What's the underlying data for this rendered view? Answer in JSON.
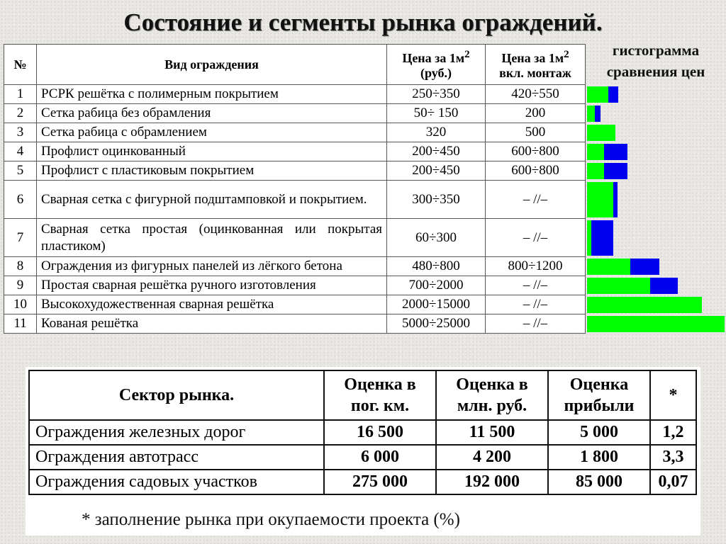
{
  "title": "Состояние и сегменты рынка ограждений.",
  "table1": {
    "headers": [
      "№",
      "Вид ограждения",
      "Цена за 1м²\n(руб.)",
      "Цена за 1м²\nвкл. монтаж"
    ],
    "header_parts": {
      "price": "Цена за 1м",
      "sup": "2",
      "rub": "(руб.)",
      "mount": "вкл. монтаж"
    },
    "rows": [
      {
        "n": "1",
        "name": "РСРК решётка с полимерным покрытием",
        "price": "250÷350",
        "mount": "420÷550"
      },
      {
        "n": "2",
        "name": "Сетка рабица без обрамления",
        "price": "50÷ 150",
        "mount": "200"
      },
      {
        "n": "3",
        "name": "Сетка рабица с обрамлением",
        "price": "320",
        "mount": "500"
      },
      {
        "n": "4",
        "name": "Профлист оцинкованный",
        "price": "200÷450",
        "mount": "600÷800"
      },
      {
        "n": "5",
        "name": "Профлист с пластиковым покрытием",
        "price": "200÷450",
        "mount": "600÷800"
      },
      {
        "n": "6",
        "name": "Сварная сетка с фигурной подштамповкой и покрытием.",
        "price": "300÷350",
        "mount": "– //–"
      },
      {
        "n": "7",
        "name": "Сварная сетка простая (оцинкованная или покрытая пластиком)",
        "price": "60÷300",
        "mount": "– //–"
      },
      {
        "n": "8",
        "name": "Ограждения из фигурных панелей из лёгкого бетона",
        "price": "480÷800",
        "mount": "800÷1200"
      },
      {
        "n": "9",
        "name": "Простая сварная решётка ручного изготовления",
        "price": "700÷2000",
        "mount": "– //–"
      },
      {
        "n": "10",
        "name": "Высокохудожественная сварная решётка",
        "price": "2000÷15000",
        "mount": "– //–"
      },
      {
        "n": "11",
        "name": "Кованая решётка",
        "price": "5000÷25000",
        "mount": "– //–"
      }
    ]
  },
  "histogram": {
    "title_line1": "гистограмма",
    "title_line2": "сравнения цен",
    "colors": {
      "green": "#00ff00",
      "blue": "#0000ee"
    },
    "bars": [
      [
        0.155,
        0.072
      ],
      [
        0.057,
        0.041
      ],
      [
        0.206,
        0
      ],
      [
        0.124,
        0.17
      ],
      [
        0.124,
        0.17
      ],
      [
        0.19,
        0.031
      ],
      [
        0.031,
        0.16
      ],
      [
        0.314,
        0.211
      ],
      [
        0.459,
        0.201
      ],
      [
        0.835,
        0
      ],
      [
        1.0,
        0
      ]
    ]
  },
  "table2": {
    "headers": [
      "Сектор рынка.",
      "Оценка в пог. км.",
      "Оценка в млн. руб.",
      "Оценка прибыли",
      "*"
    ],
    "rows": [
      [
        "Ограждения железных дорог",
        "16 500",
        "11 500",
        "5 000",
        "1,2"
      ],
      [
        "Ограждения автотрасс",
        "6 000",
        "4 200",
        "1 800",
        "3,3"
      ],
      [
        "Ограждения садовых участков",
        "275 000",
        "192 000",
        "85 000",
        "0,07"
      ]
    ]
  },
  "footnote": "* заполнение рынка при окупаемости проекта (%)"
}
